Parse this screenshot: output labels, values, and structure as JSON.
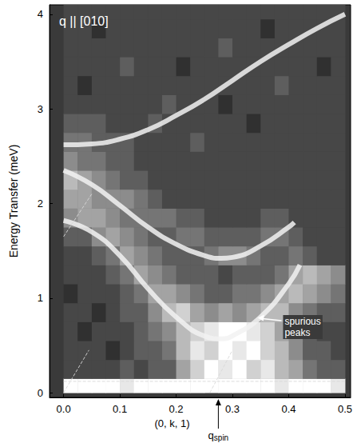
{
  "chart_data": {
    "type": "heatmap",
    "x_label": "(0, k, 1)",
    "y_label": "Energy Transfer (meV)",
    "xlim": [
      -0.025,
      0.51
    ],
    "xticks": [
      {
        "value": 0,
        "label": "0.0"
      },
      0.1,
      0.2,
      0.3,
      0.4,
      0.5
    ],
    "ylim": [
      -0.05,
      4.1
    ],
    "yticks": [
      0,
      1,
      2,
      3,
      4
    ],
    "x_bins": [
      0,
      0.025,
      0.05,
      0.075,
      0.1,
      0.125,
      0.15,
      0.175,
      0.2,
      0.225,
      0.25,
      0.275,
      0.3,
      0.325,
      0.35,
      0.375,
      0.4,
      0.425,
      0.45,
      0.475,
      0.5
    ],
    "y_bins": [
      0,
      0.15,
      0.35,
      0.55,
      0.75,
      0.95,
      1.15,
      1.35,
      1.55,
      1.75,
      1.95,
      2.15,
      2.35,
      2.55,
      2.75,
      2.95,
      3.15,
      3.35,
      3.55,
      3.75,
      3.95,
      4.1
    ],
    "intensity_range": [
      0,
      9
    ],
    "intensity": [
      [
        9,
        9,
        9,
        9,
        8,
        9,
        9,
        9,
        9,
        9,
        9,
        9,
        9,
        9,
        9,
        8,
        9,
        9,
        9,
        8
      ],
      [
        1,
        1,
        1,
        1,
        2,
        1,
        2,
        2,
        5,
        7,
        9,
        8,
        9,
        7,
        8,
        6,
        5,
        3,
        2,
        2
      ],
      [
        1,
        1,
        1,
        0,
        1,
        2,
        2,
        3,
        6,
        8,
        7,
        9,
        8,
        9,
        7,
        6,
        4,
        2,
        2,
        1
      ],
      [
        1,
        0,
        1,
        1,
        1,
        2,
        3,
        4,
        6,
        7,
        8,
        9,
        9,
        8,
        7,
        5,
        4,
        2,
        1,
        1
      ],
      [
        1,
        1,
        0,
        1,
        2,
        2,
        4,
        6,
        7,
        5,
        4,
        5,
        4,
        5,
        6,
        6,
        4,
        3,
        2,
        2
      ],
      [
        0,
        1,
        1,
        1,
        2,
        3,
        5,
        5,
        4,
        3,
        2,
        2,
        3,
        3,
        4,
        5,
        6,
        5,
        4,
        3
      ],
      [
        1,
        1,
        1,
        2,
        3,
        5,
        4,
        3,
        2,
        2,
        2,
        1,
        2,
        2,
        2,
        3,
        5,
        6,
        5,
        4
      ],
      [
        1,
        1,
        2,
        3,
        5,
        4,
        3,
        2,
        2,
        2,
        3,
        4,
        4,
        3,
        2,
        2,
        3,
        2,
        1,
        1
      ],
      [
        2,
        2,
        4,
        5,
        4,
        3,
        2,
        2,
        3,
        3,
        2,
        2,
        2,
        2,
        3,
        3,
        2,
        1,
        1,
        1
      ],
      [
        4,
        5,
        5,
        4,
        3,
        3,
        3,
        3,
        2,
        2,
        1,
        1,
        1,
        1,
        2,
        2,
        1,
        1,
        1,
        1
      ],
      [
        5,
        5,
        4,
        4,
        4,
        3,
        2,
        1,
        1,
        1,
        1,
        1,
        1,
        1,
        1,
        1,
        1,
        1,
        1,
        1
      ],
      [
        6,
        5,
        4,
        3,
        2,
        2,
        1,
        1,
        1,
        1,
        1,
        1,
        1,
        1,
        1,
        1,
        1,
        1,
        1,
        1
      ],
      [
        4,
        3,
        3,
        2,
        2,
        1,
        1,
        1,
        1,
        1,
        1,
        1,
        1,
        1,
        1,
        1,
        1,
        1,
        1,
        1
      ],
      [
        3,
        3,
        2,
        2,
        2,
        1,
        1,
        1,
        1,
        2,
        1,
        1,
        1,
        1,
        1,
        1,
        1,
        1,
        1,
        1
      ],
      [
        2,
        2,
        2,
        1,
        1,
        1,
        2,
        1,
        1,
        1,
        1,
        1,
        1,
        0,
        1,
        1,
        1,
        1,
        1,
        1
      ],
      [
        1,
        1,
        1,
        1,
        1,
        1,
        1,
        2,
        1,
        1,
        1,
        0,
        1,
        1,
        1,
        1,
        1,
        1,
        1,
        1
      ],
      [
        1,
        0,
        1,
        1,
        1,
        1,
        1,
        1,
        1,
        1,
        1,
        1,
        1,
        1,
        1,
        2,
        1,
        1,
        1,
        1
      ],
      [
        1,
        1,
        1,
        1,
        2,
        1,
        1,
        1,
        0,
        1,
        1,
        1,
        1,
        1,
        1,
        1,
        1,
        1,
        0,
        1
      ],
      [
        1,
        1,
        1,
        1,
        1,
        1,
        1,
        1,
        1,
        1,
        1,
        2,
        1,
        1,
        1,
        1,
        1,
        1,
        1,
        1
      ],
      [
        1,
        1,
        0,
        1,
        1,
        1,
        1,
        1,
        1,
        1,
        1,
        1,
        1,
        1,
        0,
        1,
        1,
        1,
        1,
        1
      ],
      [
        1,
        1,
        1,
        1,
        1,
        1,
        1,
        1,
        1,
        1,
        1,
        1,
        1,
        1,
        1,
        1,
        1,
        1,
        1,
        1
      ]
    ],
    "series": [
      {
        "type": "line",
        "color": "#f2f2f2",
        "line_style": "solid",
        "values": [
          [
            0,
            2.62
          ],
          [
            0.05,
            2.63
          ],
          [
            0.1,
            2.68
          ],
          [
            0.15,
            2.78
          ],
          [
            0.2,
            2.93
          ],
          [
            0.25,
            3.1
          ],
          [
            0.3,
            3.3
          ],
          [
            0.35,
            3.5
          ],
          [
            0.4,
            3.68
          ],
          [
            0.45,
            3.85
          ],
          [
            0.5,
            4.0
          ]
        ]
      },
      {
        "type": "line",
        "color": "#f2f2f2",
        "line_style": "solid",
        "values": [
          [
            0,
            2.35
          ],
          [
            0.05,
            2.2
          ],
          [
            0.1,
            1.98
          ],
          [
            0.15,
            1.75
          ],
          [
            0.2,
            1.57
          ],
          [
            0.25,
            1.45
          ],
          [
            0.28,
            1.42
          ],
          [
            0.3,
            1.43
          ],
          [
            0.35,
            1.55
          ],
          [
            0.4,
            1.75
          ],
          [
            0.41,
            1.8
          ]
        ]
      },
      {
        "type": "line",
        "color": "#f2f2f2",
        "line_style": "solid",
        "values": [
          [
            0,
            1.82
          ],
          [
            0.05,
            1.7
          ],
          [
            0.1,
            1.45
          ],
          [
            0.15,
            1.1
          ],
          [
            0.2,
            0.8
          ],
          [
            0.25,
            0.6
          ],
          [
            0.28,
            0.57
          ],
          [
            0.3,
            0.6
          ],
          [
            0.35,
            0.8
          ],
          [
            0.4,
            1.15
          ],
          [
            0.42,
            1.35
          ]
        ]
      },
      {
        "type": "line",
        "color": "#d8d8d8",
        "line_style": "dashed",
        "values": [
          [
            0,
            0.12
          ],
          [
            0.5,
            0.12
          ]
        ]
      },
      {
        "type": "line",
        "color": "#d8d8d8",
        "line_style": "dashed",
        "values": [
          [
            0,
            0
          ],
          [
            0.045,
            0.45
          ]
        ]
      },
      {
        "type": "line",
        "color": "#d8d8d8",
        "line_style": "dashed",
        "values": [
          [
            0,
            1.65
          ],
          [
            0.05,
            2.1
          ]
        ]
      },
      {
        "type": "line",
        "color": "#d8d8d8",
        "line_style": "dashed",
        "values": [
          [
            0.26,
            0
          ],
          [
            0.3,
            0.45
          ]
        ]
      }
    ],
    "annotations": [
      {
        "text": "q || [010]"
      },
      {
        "text": "spurious peaks"
      },
      {
        "text": "qspin",
        "x": 0.275
      }
    ]
  }
}
